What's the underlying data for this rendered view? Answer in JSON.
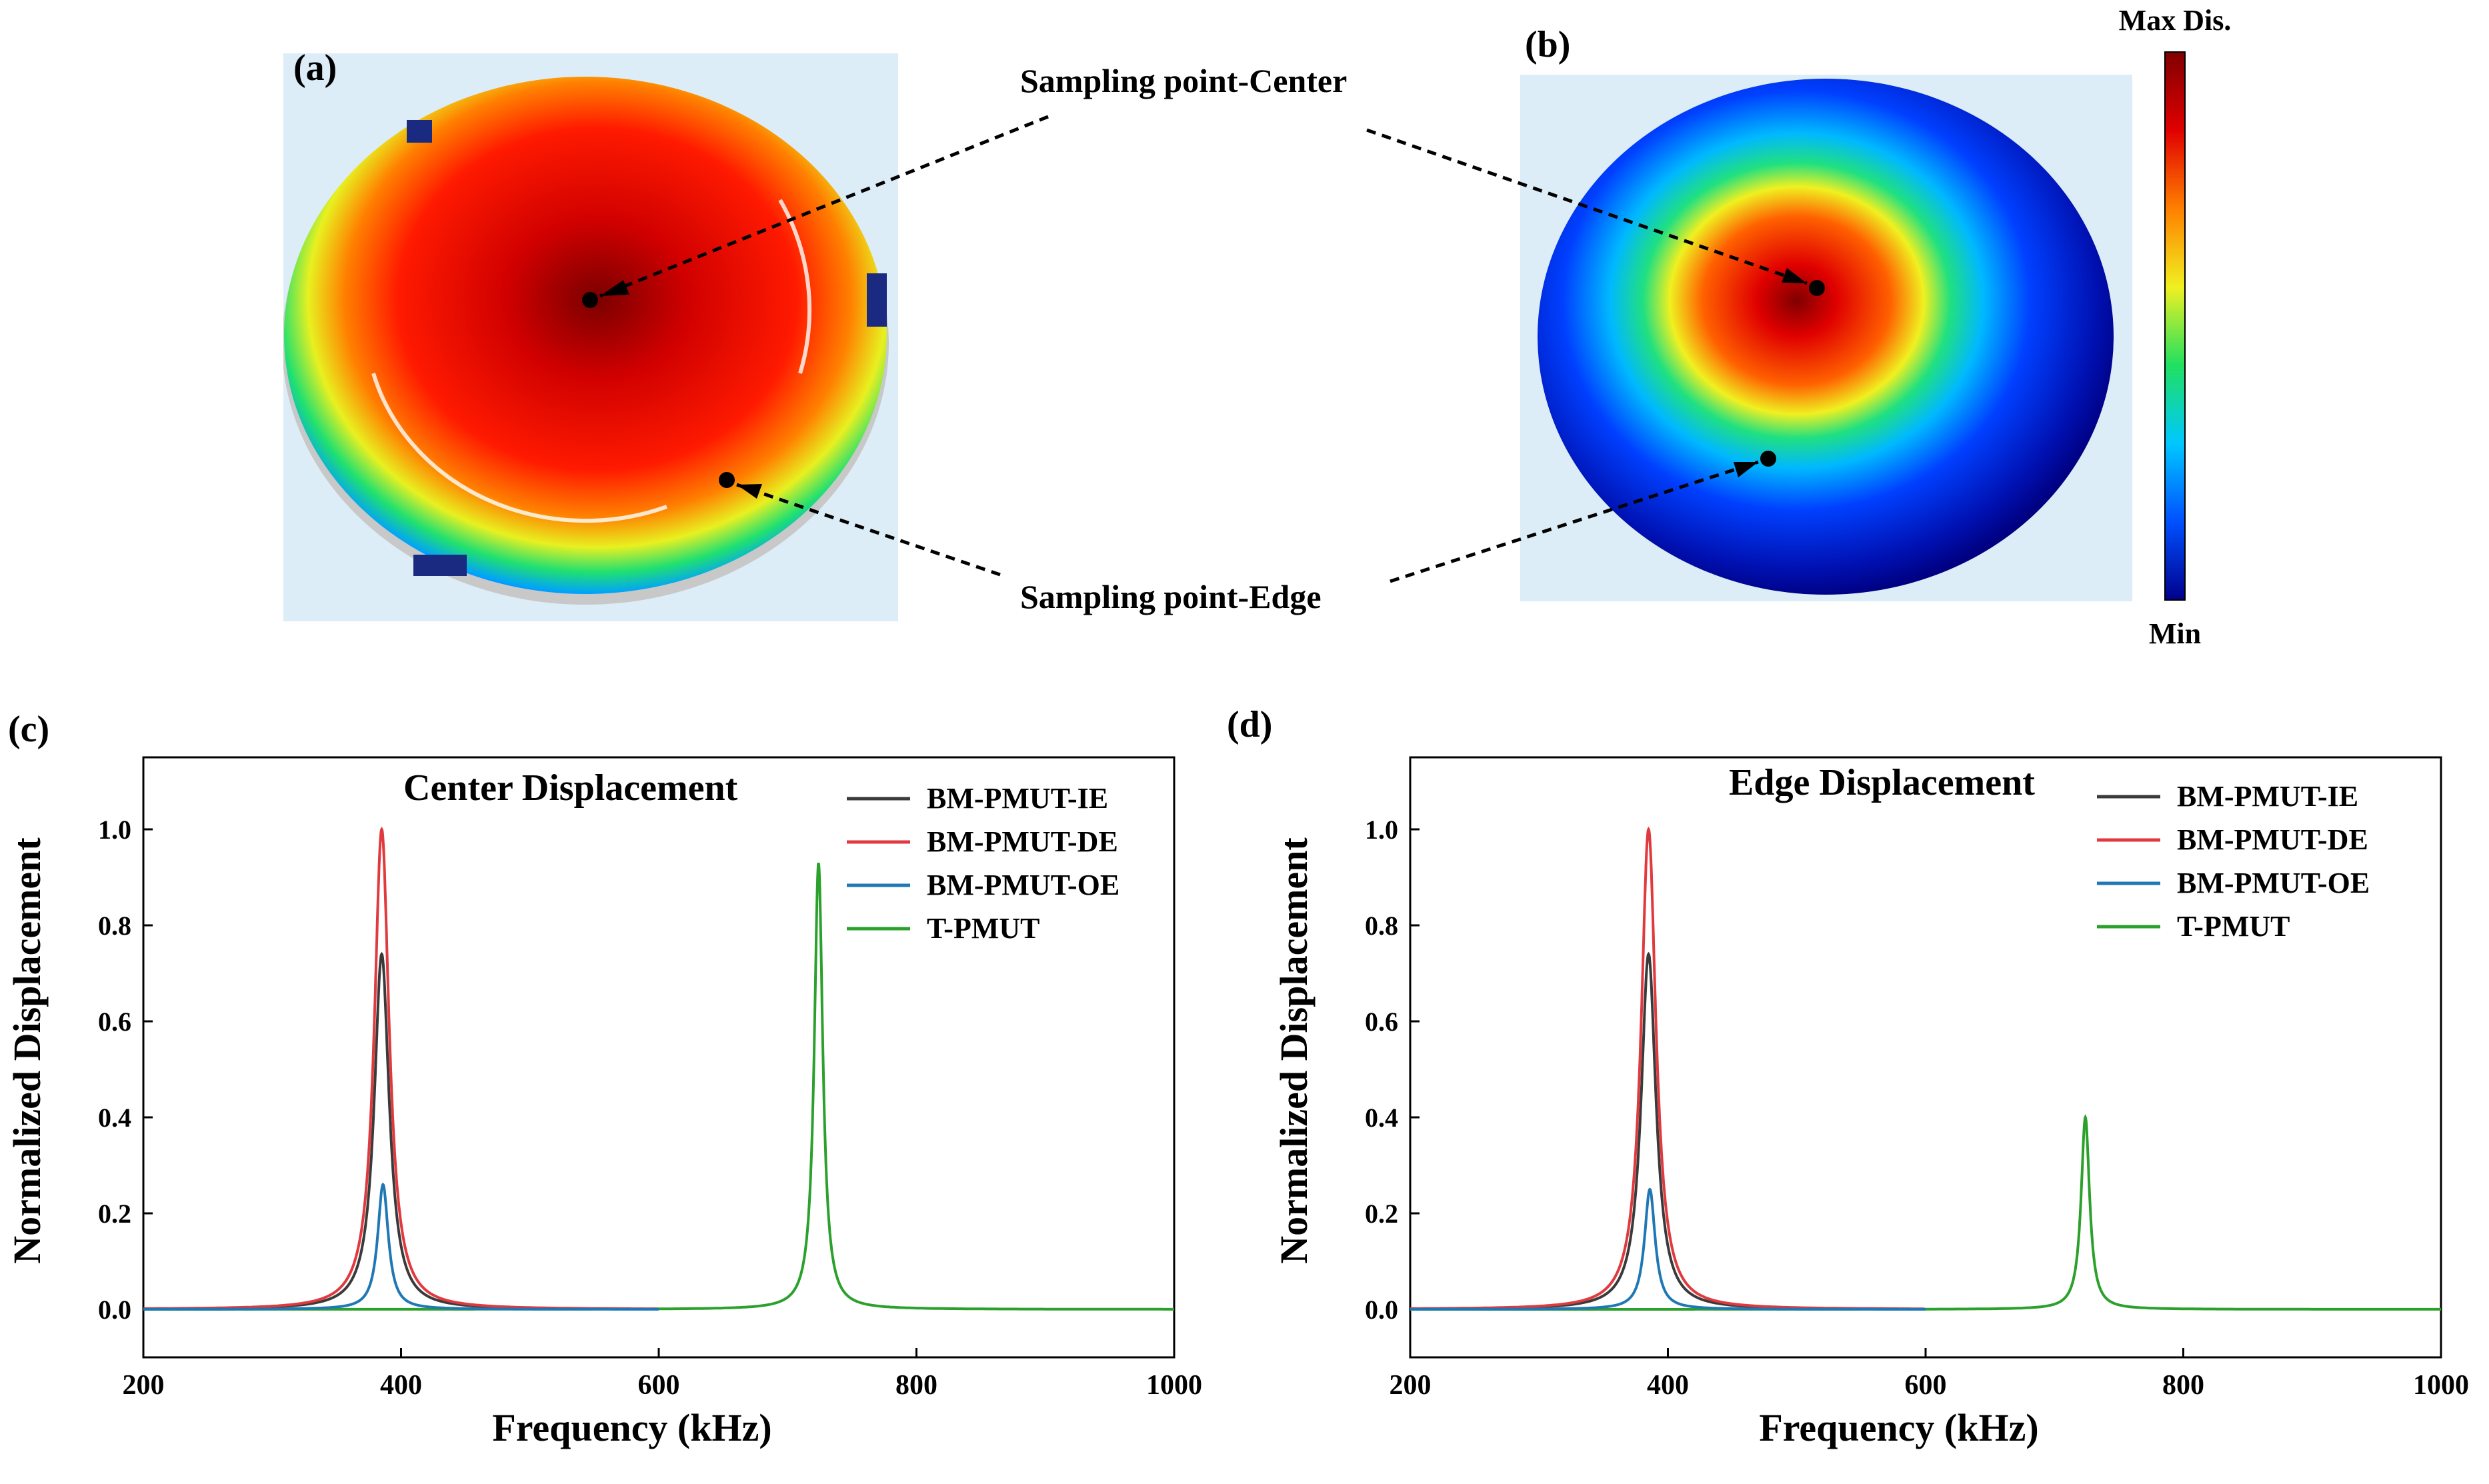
{
  "panels": {
    "a": "(a)",
    "b": "(b)",
    "c": "(c)",
    "d": "(d)"
  },
  "annotations": {
    "center": "Sampling point-Center",
    "edge": "Sampling point-Edge"
  },
  "colorbar": {
    "max_label": "Max Dis.",
    "min_label": "Min",
    "colors": [
      "#00008c",
      "#0050ff",
      "#00c8ff",
      "#20e060",
      "#f0f020",
      "#ff8000",
      "#e00000",
      "#800000"
    ]
  },
  "series_colors": {
    "BM-PMUT-IE": "#3a3a3a",
    "BM-PMUT-DE": "#e0393e",
    "BM-PMUT-OE": "#1f77b4",
    "T-PMUT": "#2ca02c"
  },
  "chart_data": [
    {
      "type": "line",
      "title": "Center Displacement",
      "xlabel": "Frequency (kHz)",
      "ylabel": "Normalized Displacement",
      "xlim": [
        200,
        1000
      ],
      "ylim": [
        -0.1,
        1.15
      ],
      "xticks": [
        200,
        400,
        600,
        800,
        1000
      ],
      "yticks": [
        0.0,
        0.2,
        0.4,
        0.6,
        0.8,
        1.0
      ],
      "legend_position": "top-right",
      "series": [
        {
          "name": "BM-PMUT-IE",
          "peak_x": 385,
          "peak_y": 0.74,
          "width": 7,
          "x_range": [
            200,
            550
          ],
          "floor": 0.0
        },
        {
          "name": "BM-PMUT-DE",
          "peak_x": 385,
          "peak_y": 1.0,
          "width": 7,
          "x_range": [
            200,
            600
          ],
          "floor": 0.0
        },
        {
          "name": "BM-PMUT-OE",
          "peak_x": 386,
          "peak_y": 0.26,
          "width": 5,
          "x_range": [
            200,
            600
          ],
          "floor": 0.0
        },
        {
          "name": "T-PMUT",
          "peak_x": 724,
          "peak_y": 0.93,
          "width": 4,
          "x_range": [
            200,
            1000
          ],
          "floor": 0.0
        }
      ]
    },
    {
      "type": "line",
      "title": "Edge Displacement",
      "xlabel": "Frequency (kHz)",
      "ylabel": "Normalized Displacement",
      "xlim": [
        200,
        1000
      ],
      "ylim": [
        -0.1,
        1.15
      ],
      "xticks": [
        200,
        400,
        600,
        800,
        1000
      ],
      "yticks": [
        0.0,
        0.2,
        0.4,
        0.6,
        0.8,
        1.0
      ],
      "legend_position": "top-right",
      "series": [
        {
          "name": "BM-PMUT-IE",
          "peak_x": 385,
          "peak_y": 0.74,
          "width": 7,
          "x_range": [
            200,
            550
          ],
          "floor": 0.0
        },
        {
          "name": "BM-PMUT-DE",
          "peak_x": 385,
          "peak_y": 1.0,
          "width": 7,
          "x_range": [
            200,
            600
          ],
          "floor": 0.0
        },
        {
          "name": "BM-PMUT-OE",
          "peak_x": 386,
          "peak_y": 0.25,
          "width": 5,
          "x_range": [
            200,
            600
          ],
          "floor": 0.0
        },
        {
          "name": "T-PMUT",
          "peak_x": 724,
          "peak_y": 0.4,
          "width": 4,
          "x_range": [
            200,
            1000
          ],
          "floor": 0.0
        }
      ]
    }
  ]
}
